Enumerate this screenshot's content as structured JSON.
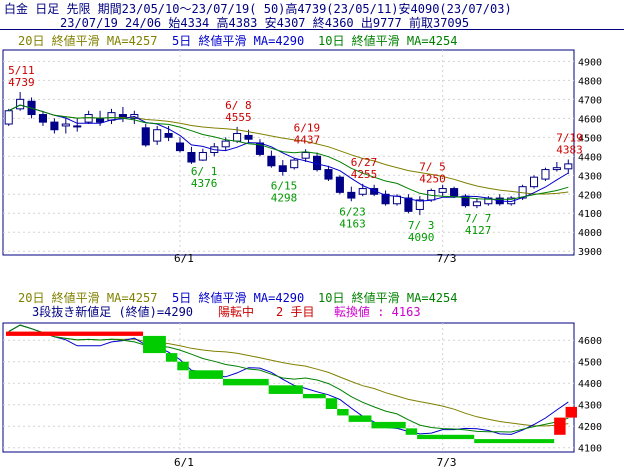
{
  "header": {
    "line1": "白金 日足 先限 期間23/05/10～23/07/19( 50)高4739(23/05/11)安4090(23/07/03)",
    "line2": "23/07/19 24/06 始4334 高4383 安4307 終4360 出9777 前取37095"
  },
  "legend": {
    "ma20": "20日 終値平滑 MA=4257",
    "ma5": "5日 終値平滑 MA=4290",
    "ma10": "10日 終値平滑 MA=4254"
  },
  "lower_info": {
    "three_line": "3段抜き新値足 (終値)=4290",
    "trend": "陽転中",
    "step": "2 手目",
    "turn": "転換値 : 4163"
  },
  "colors": {
    "up_candle": "#ffffff",
    "down_candle": "#00008b",
    "ma5": "#0000cc",
    "ma10": "#008000",
    "ma20": "#808000",
    "high_label": "#cc0000",
    "low_label": "#009900",
    "brick_up": "#ff0000",
    "brick_down": "#00cc00",
    "border": "#000080",
    "grid": "#d3d3d3"
  },
  "chart_data": [
    {
      "type": "candlestick",
      "name": "price",
      "ylim": [
        3880,
        4960
      ],
      "yticks": [
        3900,
        4000,
        4100,
        4200,
        4300,
        4400,
        4500,
        4600,
        4700,
        4800,
        4900
      ],
      "xtick_labels": [
        {
          "index": 15,
          "label": "6/1"
        },
        {
          "index": 38,
          "label": "7/3"
        }
      ],
      "candles": [
        {
          "o": 4570,
          "h": 4650,
          "l": 4560,
          "c": 4640
        },
        {
          "o": 4650,
          "h": 4739,
          "l": 4640,
          "c": 4700
        },
        {
          "o": 4690,
          "h": 4710,
          "l": 4600,
          "c": 4620
        },
        {
          "o": 4620,
          "h": 4640,
          "l": 4560,
          "c": 4580
        },
        {
          "o": 4580,
          "h": 4600,
          "l": 4520,
          "c": 4540
        },
        {
          "o": 4560,
          "h": 4600,
          "l": 4520,
          "c": 4570
        },
        {
          "o": 4560,
          "h": 4600,
          "l": 4530,
          "c": 4560
        },
        {
          "o": 4580,
          "h": 4640,
          "l": 4570,
          "c": 4620
        },
        {
          "o": 4600,
          "h": 4640,
          "l": 4560,
          "c": 4580
        },
        {
          "o": 4590,
          "h": 4650,
          "l": 4570,
          "c": 4630
        },
        {
          "o": 4620,
          "h": 4660,
          "l": 4580,
          "c": 4600
        },
        {
          "o": 4600,
          "h": 4640,
          "l": 4570,
          "c": 4620
        },
        {
          "o": 4550,
          "h": 4570,
          "l": 4450,
          "c": 4460
        },
        {
          "o": 4480,
          "h": 4560,
          "l": 4460,
          "c": 4540
        },
        {
          "o": 4520,
          "h": 4560,
          "l": 4480,
          "c": 4500
        },
        {
          "o": 4470,
          "h": 4500,
          "l": 4420,
          "c": 4430
        },
        {
          "o": 4420,
          "h": 4450,
          "l": 4360,
          "c": 4370
        },
        {
          "o": 4380,
          "h": 4440,
          "l": 4376,
          "c": 4420
        },
        {
          "o": 4420,
          "h": 4470,
          "l": 4400,
          "c": 4450
        },
        {
          "o": 4450,
          "h": 4500,
          "l": 4430,
          "c": 4480
        },
        {
          "o": 4480,
          "h": 4555,
          "l": 4470,
          "c": 4520
        },
        {
          "o": 4510,
          "h": 4540,
          "l": 4470,
          "c": 4490
        },
        {
          "o": 4470,
          "h": 4490,
          "l": 4400,
          "c": 4410
        },
        {
          "o": 4400,
          "h": 4430,
          "l": 4340,
          "c": 4350
        },
        {
          "o": 4350,
          "h": 4380,
          "l": 4298,
          "c": 4320
        },
        {
          "o": 4340,
          "h": 4390,
          "l": 4330,
          "c": 4380
        },
        {
          "o": 4390,
          "h": 4437,
          "l": 4370,
          "c": 4420
        },
        {
          "o": 4400,
          "h": 4420,
          "l": 4320,
          "c": 4330
        },
        {
          "o": 4330,
          "h": 4350,
          "l": 4270,
          "c": 4280
        },
        {
          "o": 4290,
          "h": 4300,
          "l": 4200,
          "c": 4210
        },
        {
          "o": 4210,
          "h": 4240,
          "l": 4163,
          "c": 4180
        },
        {
          "o": 4200,
          "h": 4255,
          "l": 4190,
          "c": 4230
        },
        {
          "o": 4230,
          "h": 4250,
          "l": 4190,
          "c": 4200
        },
        {
          "o": 4200,
          "h": 4220,
          "l": 4140,
          "c": 4150
        },
        {
          "o": 4150,
          "h": 4200,
          "l": 4140,
          "c": 4190
        },
        {
          "o": 4180,
          "h": 4200,
          "l": 4100,
          "c": 4110
        },
        {
          "o": 4120,
          "h": 4190,
          "l": 4090,
          "c": 4170
        },
        {
          "o": 4170,
          "h": 4230,
          "l": 4160,
          "c": 4220
        },
        {
          "o": 4210,
          "h": 4250,
          "l": 4190,
          "c": 4230
        },
        {
          "o": 4230,
          "h": 4240,
          "l": 4180,
          "c": 4190
        },
        {
          "o": 4190,
          "h": 4200,
          "l": 4130,
          "c": 4140
        },
        {
          "o": 4140,
          "h": 4180,
          "l": 4127,
          "c": 4160
        },
        {
          "o": 4150,
          "h": 4190,
          "l": 4140,
          "c": 4180
        },
        {
          "o": 4180,
          "h": 4200,
          "l": 4140,
          "c": 4150
        },
        {
          "o": 4150,
          "h": 4190,
          "l": 4140,
          "c": 4180
        },
        {
          "o": 4180,
          "h": 4250,
          "l": 4170,
          "c": 4240
        },
        {
          "o": 4240,
          "h": 4300,
          "l": 4230,
          "c": 4290
        },
        {
          "o": 4280,
          "h": 4340,
          "l": 4270,
          "c": 4330
        },
        {
          "o": 4330,
          "h": 4370,
          "l": 4320,
          "c": 4340
        },
        {
          "o": 4334,
          "h": 4383,
          "l": 4307,
          "c": 4360
        }
      ],
      "ma": [
        {
          "name": "20日",
          "period": 20,
          "color_key": "ma20"
        },
        {
          "name": "5日",
          "period": 5,
          "color_key": "ma5"
        },
        {
          "name": "10日",
          "period": 10,
          "color_key": "ma10"
        }
      ],
      "annotations": [
        {
          "index": 1,
          "kind": "high",
          "date": "5/11",
          "value": "4739"
        },
        {
          "index": 20,
          "kind": "high",
          "date": "6/ 8",
          "value": "4555"
        },
        {
          "index": 26,
          "kind": "high",
          "date": "6/19",
          "value": "4437"
        },
        {
          "index": 31,
          "kind": "high",
          "date": "6/27",
          "value": "4255"
        },
        {
          "index": 37,
          "kind": "high",
          "date": "7/ 5",
          "value": "4250"
        },
        {
          "index": 49,
          "kind": "high",
          "date": "7/19",
          "value": "4383"
        },
        {
          "index": 17,
          "kind": "low",
          "date": "6/ 1",
          "value": "4376"
        },
        {
          "index": 24,
          "kind": "low",
          "date": "6/15",
          "value": "4298"
        },
        {
          "index": 30,
          "kind": "low",
          "date": "6/23",
          "value": "4163"
        },
        {
          "index": 36,
          "kind": "low",
          "date": "7/ 3",
          "value": "4090"
        },
        {
          "index": 41,
          "kind": "low",
          "date": "7/ 7",
          "value": "4127"
        }
      ]
    },
    {
      "type": "three_line_break",
      "name": "3段抜き新値足",
      "ylim": [
        4080,
        4680
      ],
      "yticks": [
        4100,
        4200,
        4300,
        4400,
        4500,
        4600
      ],
      "xtick_labels": [
        {
          "index": 15,
          "label": "6/1"
        },
        {
          "index": 38,
          "label": "7/3"
        }
      ],
      "bricks": [
        {
          "from_i": 0,
          "to_i": 12,
          "low": 4620,
          "high": 4640,
          "dir": "up"
        },
        {
          "from_i": 12,
          "to_i": 14,
          "low": 4540,
          "high": 4620,
          "dir": "down"
        },
        {
          "from_i": 14,
          "to_i": 15,
          "low": 4500,
          "high": 4540,
          "dir": "down"
        },
        {
          "from_i": 15,
          "to_i": 16,
          "low": 4460,
          "high": 4500,
          "dir": "down"
        },
        {
          "from_i": 16,
          "to_i": 19,
          "low": 4420,
          "high": 4460,
          "dir": "down"
        },
        {
          "from_i": 19,
          "to_i": 23,
          "low": 4390,
          "high": 4420,
          "dir": "down"
        },
        {
          "from_i": 23,
          "to_i": 26,
          "low": 4350,
          "high": 4390,
          "dir": "down"
        },
        {
          "from_i": 26,
          "to_i": 28,
          "low": 4330,
          "high": 4350,
          "dir": "down"
        },
        {
          "from_i": 28,
          "to_i": 29,
          "low": 4280,
          "high": 4330,
          "dir": "down"
        },
        {
          "from_i": 29,
          "to_i": 30,
          "low": 4250,
          "high": 4280,
          "dir": "down"
        },
        {
          "from_i": 30,
          "to_i": 32,
          "low": 4220,
          "high": 4250,
          "dir": "down"
        },
        {
          "from_i": 32,
          "to_i": 35,
          "low": 4190,
          "high": 4220,
          "dir": "down"
        },
        {
          "from_i": 35,
          "to_i": 36,
          "low": 4160,
          "high": 4190,
          "dir": "down"
        },
        {
          "from_i": 36,
          "to_i": 41,
          "low": 4140,
          "high": 4160,
          "dir": "down"
        },
        {
          "from_i": 41,
          "to_i": 48,
          "low": 4130,
          "high": 4140,
          "dir": "down"
        },
        {
          "from_i": 48,
          "to_i": 49,
          "low": 4160,
          "high": 4240,
          "dir": "up"
        },
        {
          "from_i": 49,
          "to_i": 50,
          "low": 4240,
          "high": 4290,
          "dir": "up"
        }
      ]
    }
  ]
}
